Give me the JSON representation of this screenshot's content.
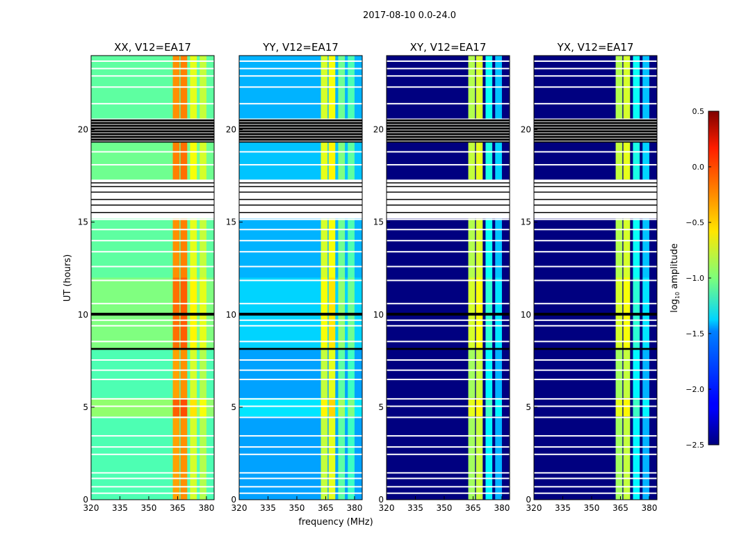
{
  "chart_data": {
    "type": "heatmap",
    "title": "2017-08-10 0.0-24.0",
    "xlabel": "frequency (MHz)",
    "ylabel": "UT (hours)",
    "xlim": [
      320,
      384
    ],
    "ylim": [
      0,
      24
    ],
    "xticks": [
      "320",
      "335",
      "350",
      "365",
      "380"
    ],
    "xtick_values": [
      320,
      335,
      350,
      365,
      380
    ],
    "yticks": [
      "0",
      "5",
      "10",
      "15",
      "20"
    ],
    "ytick_values": [
      0,
      5,
      10,
      15,
      20
    ],
    "colorbar": {
      "label": "log10 amplitude",
      "label_main": "log",
      "label_sub": "10",
      "label_rest": " amplitude",
      "range": [
        -2.5,
        0.5
      ],
      "ticks": [
        "0.5",
        "0.0",
        "−0.5",
        "−1.0",
        "−1.5",
        "−2.0",
        "−2.5"
      ],
      "tick_values": [
        0.5,
        0.0,
        -0.5,
        -1.0,
        -1.5,
        -2.0,
        -2.5
      ],
      "colormap": "jet"
    },
    "time_segments": [
      [
        0,
        4.5,
        0
      ],
      [
        4.5,
        5.5,
        0.2
      ],
      [
        5.5,
        8.1,
        0
      ],
      [
        8.1,
        12,
        0.15
      ],
      [
        12,
        15.2,
        0.05
      ],
      [
        17.3,
        19.3,
        0.1
      ],
      [
        20.5,
        24,
        0.05
      ]
    ],
    "bands": [
      [
        362.5,
        366
      ],
      [
        366.5,
        370
      ],
      [
        371.5,
        375
      ],
      [
        376.5,
        380
      ]
    ],
    "flags_white": [
      0.35,
      0.7,
      1.15,
      1.45,
      2.45,
      2.85,
      3.45,
      4.45,
      5.05,
      5.45,
      6.5,
      7.0,
      7.55,
      8.55,
      9.4,
      9.7,
      10.6,
      11.85,
      12.6,
      13.4,
      14.0,
      14.6,
      15.15,
      18.1,
      18.8,
      21.4,
      22.3,
      22.9,
      23.3,
      23.7
    ],
    "flags_black": [
      [
        8.1,
        8.2
      ],
      [
        9.95,
        10.1
      ],
      [
        19.3,
        20.55
      ],
      [
        15.5,
        15.55
      ],
      [
        15.9,
        15.95
      ],
      [
        16.2,
        16.25
      ],
      [
        16.6,
        16.65
      ],
      [
        16.9,
        16.95
      ],
      [
        17.1,
        17.15
      ]
    ],
    "flag_white_ranges": [
      [
        15.2,
        17.3
      ],
      [
        20.55,
        20.6
      ]
    ],
    "panels": [
      {
        "title": "XX, V12=EA17",
        "base": -1.15,
        "band_levels": [
          -0.35,
          -0.3,
          -0.75,
          -0.85
        ]
      },
      {
        "title": "YY, V12=EA17",
        "base": -1.65,
        "band_levels": [
          -0.8,
          -0.7,
          -1.1,
          -1.2
        ]
      },
      {
        "title": "XY, V12=EA17",
        "base": -2.5,
        "band_levels": [
          -0.9,
          -0.8,
          -1.4,
          -1.6
        ]
      },
      {
        "title": "YX, V12=EA17",
        "base": -2.5,
        "band_levels": [
          -0.9,
          -0.8,
          -1.4,
          -1.6
        ]
      }
    ]
  }
}
